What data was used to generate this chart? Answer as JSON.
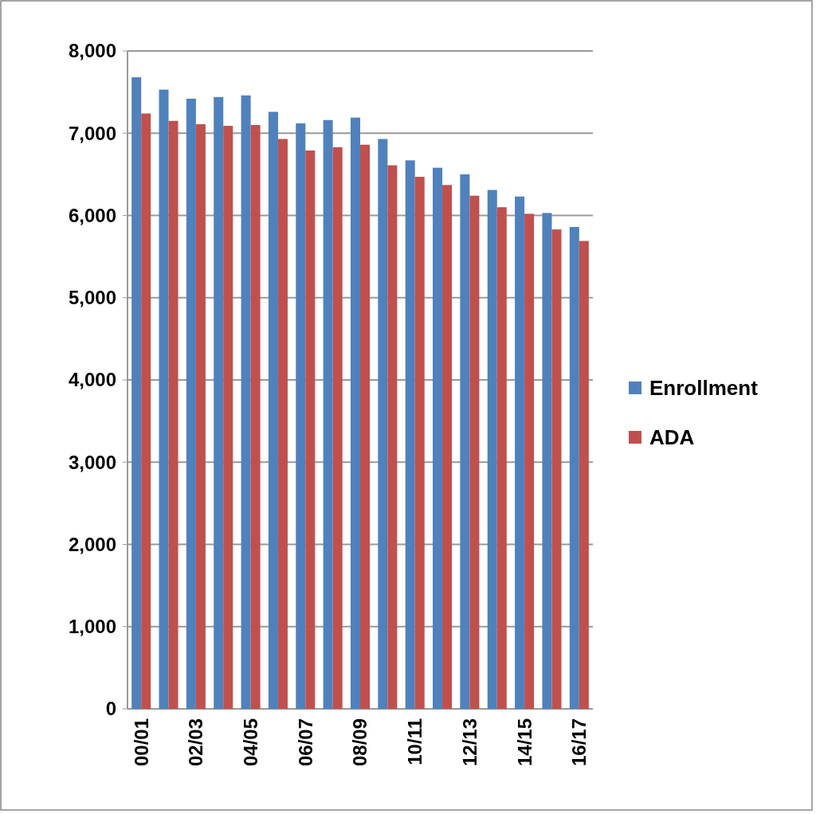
{
  "chart_data": {
    "type": "bar",
    "categories": [
      "00/01",
      null,
      "02/03",
      null,
      "04/05",
      null,
      "06/07",
      null,
      "08/09",
      null,
      "10/11",
      null,
      "12/13",
      null,
      "14/15",
      null,
      "16/17"
    ],
    "series": [
      {
        "name": "Enrollment",
        "color": "#4f81bd",
        "values": [
          7680,
          7530,
          7420,
          7440,
          7460,
          7260,
          7120,
          7160,
          7190,
          6930,
          6670,
          6580,
          6500,
          6310,
          6230,
          6030,
          5860
        ]
      },
      {
        "name": "ADA",
        "color": "#c0504d",
        "values": [
          7240,
          7150,
          7110,
          7090,
          7100,
          6930,
          6790,
          6830,
          6860,
          6610,
          6470,
          6370,
          6240,
          6100,
          6020,
          5830,
          5690
        ]
      }
    ],
    "ylim": [
      0,
      8000
    ],
    "yticks": [
      {
        "value": 0,
        "label": "0"
      },
      {
        "value": 1000,
        "label": "1,000"
      },
      {
        "value": 2000,
        "label": "2,000"
      },
      {
        "value": 3000,
        "label": "3,000"
      },
      {
        "value": 4000,
        "label": "4,000"
      },
      {
        "value": 5000,
        "label": "5,000"
      },
      {
        "value": 6000,
        "label": "6,000"
      },
      {
        "value": 7000,
        "label": "7,000"
      },
      {
        "value": 8000,
        "label": "8,000"
      }
    ],
    "grid": "y",
    "legend": "right"
  }
}
